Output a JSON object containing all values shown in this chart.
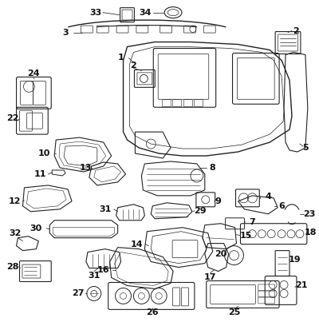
{
  "bg_color": "#ffffff",
  "fig_width": 4.0,
  "fig_height": 4.03,
  "dpi": 100,
  "ec": "#222222",
  "lw": 0.8,
  "label_fontsize": 8,
  "label_fontweight": "bold"
}
